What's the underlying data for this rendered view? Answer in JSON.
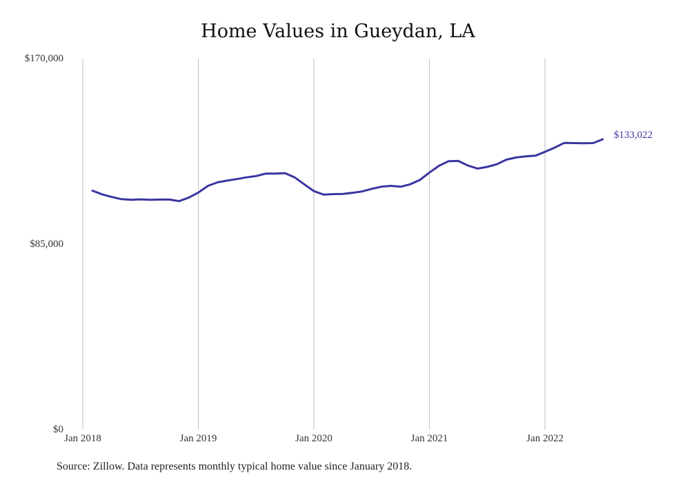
{
  "chart_data": {
    "type": "line",
    "title": "Home Values in Gueydan, LA",
    "xlabel": "",
    "ylabel": "",
    "ylim": [
      0,
      170000
    ],
    "yticks": [
      {
        "value": 0,
        "label": "$0"
      },
      {
        "value": 85000,
        "label": "$85,000"
      },
      {
        "value": 170000,
        "label": "$170,000"
      }
    ],
    "xticks": [
      {
        "month_index": 0,
        "label": "Jan 2018"
      },
      {
        "month_index": 12,
        "label": "Jan 2019"
      },
      {
        "month_index": 24,
        "label": "Jan 2020"
      },
      {
        "month_index": 36,
        "label": "Jan 2021"
      },
      {
        "month_index": 48,
        "label": "Jan 2022"
      }
    ],
    "grid": "vertical",
    "color": "#3a35a0",
    "end_label": "$133,022",
    "series": [
      {
        "start": "2018-02",
        "values": [
          109500,
          107800,
          106600,
          105600,
          105300,
          105500,
          105300,
          105400,
          105400,
          104700,
          106300,
          108600,
          111700,
          113300,
          114100,
          114800,
          115600,
          116200,
          117300,
          117300,
          117500,
          115600,
          112400,
          109300,
          107700,
          107900,
          108000,
          108500,
          109100,
          110300,
          111300,
          111700,
          111300,
          112400,
          114400,
          117800,
          120900,
          123000,
          123100,
          121000,
          119600,
          120400,
          121600,
          123700,
          124700,
          125200,
          125500,
          127300,
          129200,
          131400,
          131300,
          131200,
          131300,
          133022
        ]
      }
    ]
  },
  "source_note": "Source: Zillow. Data represents monthly typical home value since January 2018."
}
